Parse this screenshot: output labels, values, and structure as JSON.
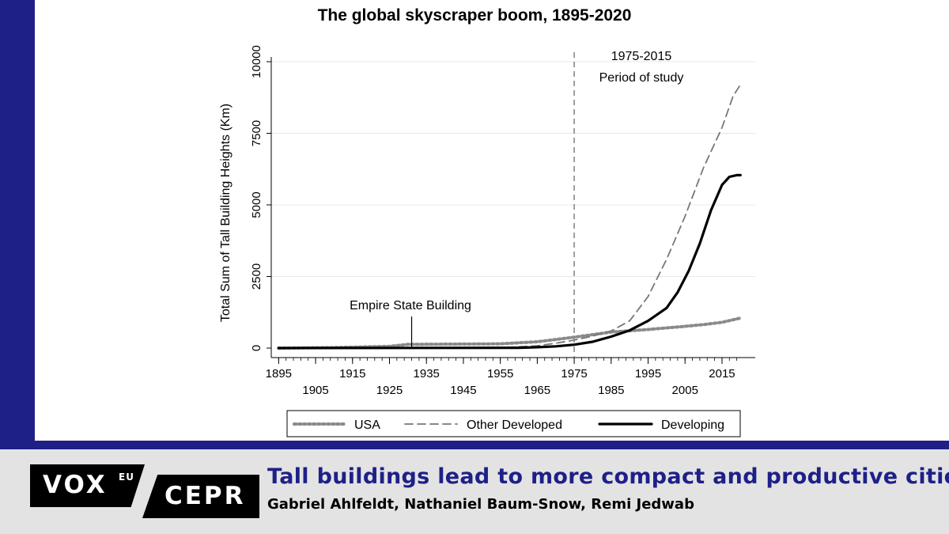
{
  "chart_data": {
    "type": "line",
    "title": "The global skyscraper boom, 1895-2020",
    "ylabel": "Total Sum of Tall Building Heights (Km)",
    "xlabel": "",
    "xlim": [
      1893,
      2024
    ],
    "ylim": [
      0,
      10000
    ],
    "x_ticks_top": [
      "1895",
      "1915",
      "1935",
      "1955",
      "1975",
      "1995",
      "2015"
    ],
    "x_ticks_bottom": [
      "1905",
      "1925",
      "1945",
      "1965",
      "1985",
      "2005"
    ],
    "y_ticks": [
      "0",
      "2500",
      "5000",
      "7500",
      "10000"
    ],
    "grid": true,
    "legend_position": "bottom",
    "series": [
      {
        "name": "USA",
        "style": "dotted",
        "color": "#8a8a8a",
        "x": [
          1895,
          1910,
          1925,
          1930,
          1945,
          1955,
          1965,
          1975,
          1985,
          1995,
          2005,
          2010,
          2015,
          2020
        ],
        "y": [
          0,
          20,
          60,
          130,
          140,
          150,
          220,
          380,
          560,
          650,
          760,
          820,
          900,
          1050
        ]
      },
      {
        "name": "Other Developed",
        "style": "dashed",
        "color": "#777777",
        "x": [
          1895,
          1940,
          1955,
          1965,
          1970,
          1975,
          1980,
          1985,
          1990,
          1995,
          2000,
          2005,
          2010,
          2015,
          2018,
          2020
        ],
        "y": [
          0,
          0,
          10,
          80,
          170,
          280,
          420,
          600,
          950,
          1800,
          3100,
          4600,
          6300,
          7700,
          8800,
          9200
        ]
      },
      {
        "name": "Developing",
        "style": "solid",
        "color": "#000000",
        "x": [
          1895,
          1960,
          1965,
          1970,
          1975,
          1980,
          1985,
          1990,
          1995,
          2000,
          2003,
          2006,
          2009,
          2012,
          2015,
          2017,
          2019,
          2020
        ],
        "y": [
          0,
          10,
          30,
          60,
          120,
          220,
          400,
          620,
          950,
          1400,
          1950,
          2700,
          3650,
          4800,
          5700,
          5980,
          6040,
          6040
        ]
      }
    ],
    "annotations": {
      "empire_state": {
        "label": "Empire State Building",
        "x": 1931,
        "y": 100
      },
      "period_line": {
        "x": 1975
      },
      "period_label_line1": "1975-2015",
      "period_label_line2": "Period of study"
    }
  },
  "brand": {
    "vox": "VOX",
    "vox_sup": "EU",
    "cepr": "CEPR",
    "accent": "#1e2088"
  },
  "article": {
    "title": "Tall buildings lead to more compact and productive cities",
    "authors": "Gabriel Ahlfeldt, Nathaniel Baum-Snow, Remi Jedwab"
  }
}
